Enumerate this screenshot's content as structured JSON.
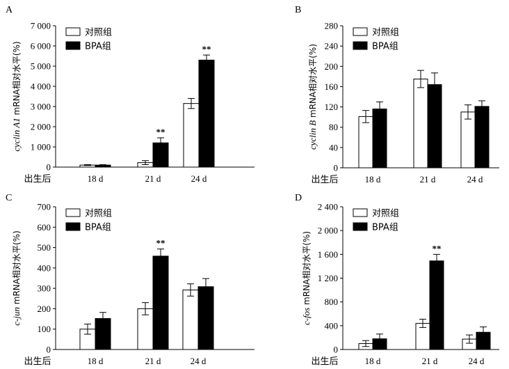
{
  "legend": {
    "control": "对照组",
    "bpa": "BPA组"
  },
  "x_prefix": "出生后",
  "significance_mark": "**",
  "colors": {
    "control_fill": "#ffffff",
    "bpa_fill": "#000000",
    "stroke": "#000000"
  },
  "chart_data": [
    {
      "panel": "A",
      "type": "bar",
      "ylabel_italic": "cyclin A1",
      "ylabel_rest": " mRNA相对水平(%)",
      "categories": [
        "18 d",
        "21 d",
        "24 d"
      ],
      "ylim": [
        0,
        7000
      ],
      "yticks": [
        0,
        1000,
        2000,
        3000,
        4000,
        5000,
        6000,
        7000
      ],
      "ytick_labels": [
        "0",
        "1 000",
        "2 000",
        "3 000",
        "4 000",
        "5 000",
        "6 000",
        "7 000"
      ],
      "series": [
        {
          "name": "对照组",
          "values": [
            100,
            220,
            3150
          ],
          "errors": [
            20,
            100,
            250
          ]
        },
        {
          "name": "BPA组",
          "values": [
            100,
            1200,
            5300
          ],
          "errors": [
            20,
            250,
            250
          ]
        }
      ],
      "significance": [
        [
          false,
          false
        ],
        [
          false,
          true
        ],
        [
          false,
          true
        ]
      ]
    },
    {
      "panel": "B",
      "type": "bar",
      "ylabel_italic": "cyclin B",
      "ylabel_rest": " mRNA相对水平(%)",
      "categories": [
        "18 d",
        "21 d",
        "24 d"
      ],
      "ylim": [
        0,
        280
      ],
      "yticks": [
        0,
        40,
        80,
        120,
        160,
        200,
        240,
        280
      ],
      "ytick_labels": [
        "0",
        "40",
        "80",
        "120",
        "160",
        "200",
        "240",
        "280"
      ],
      "series": [
        {
          "name": "对照组",
          "values": [
            101,
            175,
            110
          ],
          "errors": [
            12,
            17,
            14
          ]
        },
        {
          "name": "BPA组",
          "values": [
            116,
            164,
            121
          ],
          "errors": [
            14,
            23,
            11
          ]
        }
      ],
      "significance": [
        [
          false,
          false
        ],
        [
          false,
          false
        ],
        [
          false,
          false
        ]
      ]
    },
    {
      "panel": "C",
      "type": "bar",
      "ylabel_italic": "c-jun",
      "ylabel_rest": " mRNA相对水平(%)",
      "categories": [
        "18 d",
        "21 d",
        "24 d"
      ],
      "ylim": [
        0,
        700
      ],
      "yticks": [
        0,
        100,
        200,
        300,
        400,
        500,
        600,
        700
      ],
      "ytick_labels": [
        "0",
        "100",
        "200",
        "300",
        "400",
        "500",
        "600",
        "700"
      ],
      "series": [
        {
          "name": "对照组",
          "values": [
            100,
            200,
            292
          ],
          "errors": [
            25,
            30,
            30
          ]
        },
        {
          "name": "BPA组",
          "values": [
            152,
            458,
            308
          ],
          "errors": [
            30,
            35,
            40
          ]
        }
      ],
      "significance": [
        [
          false,
          false
        ],
        [
          false,
          true
        ],
        [
          false,
          false
        ]
      ]
    },
    {
      "panel": "D",
      "type": "bar",
      "ylabel_italic": "c-fos",
      "ylabel_rest": " mRNA相对水平(%)",
      "categories": [
        "18 d",
        "21 d",
        "24 d"
      ],
      "ylim": [
        0,
        2400
      ],
      "yticks": [
        0,
        400,
        800,
        1200,
        1600,
        2000,
        2400
      ],
      "ytick_labels": [
        "0",
        "400",
        "800",
        "1 200",
        "1 600",
        "2 000",
        "2 400"
      ],
      "series": [
        {
          "name": "对照组",
          "values": [
            100,
            440,
            175
          ],
          "errors": [
            50,
            70,
            70
          ]
        },
        {
          "name": "BPA组",
          "values": [
            180,
            1490,
            290
          ],
          "errors": [
            80,
            110,
            90
          ]
        }
      ],
      "significance": [
        [
          false,
          false
        ],
        [
          false,
          true
        ],
        [
          false,
          false
        ]
      ]
    }
  ]
}
